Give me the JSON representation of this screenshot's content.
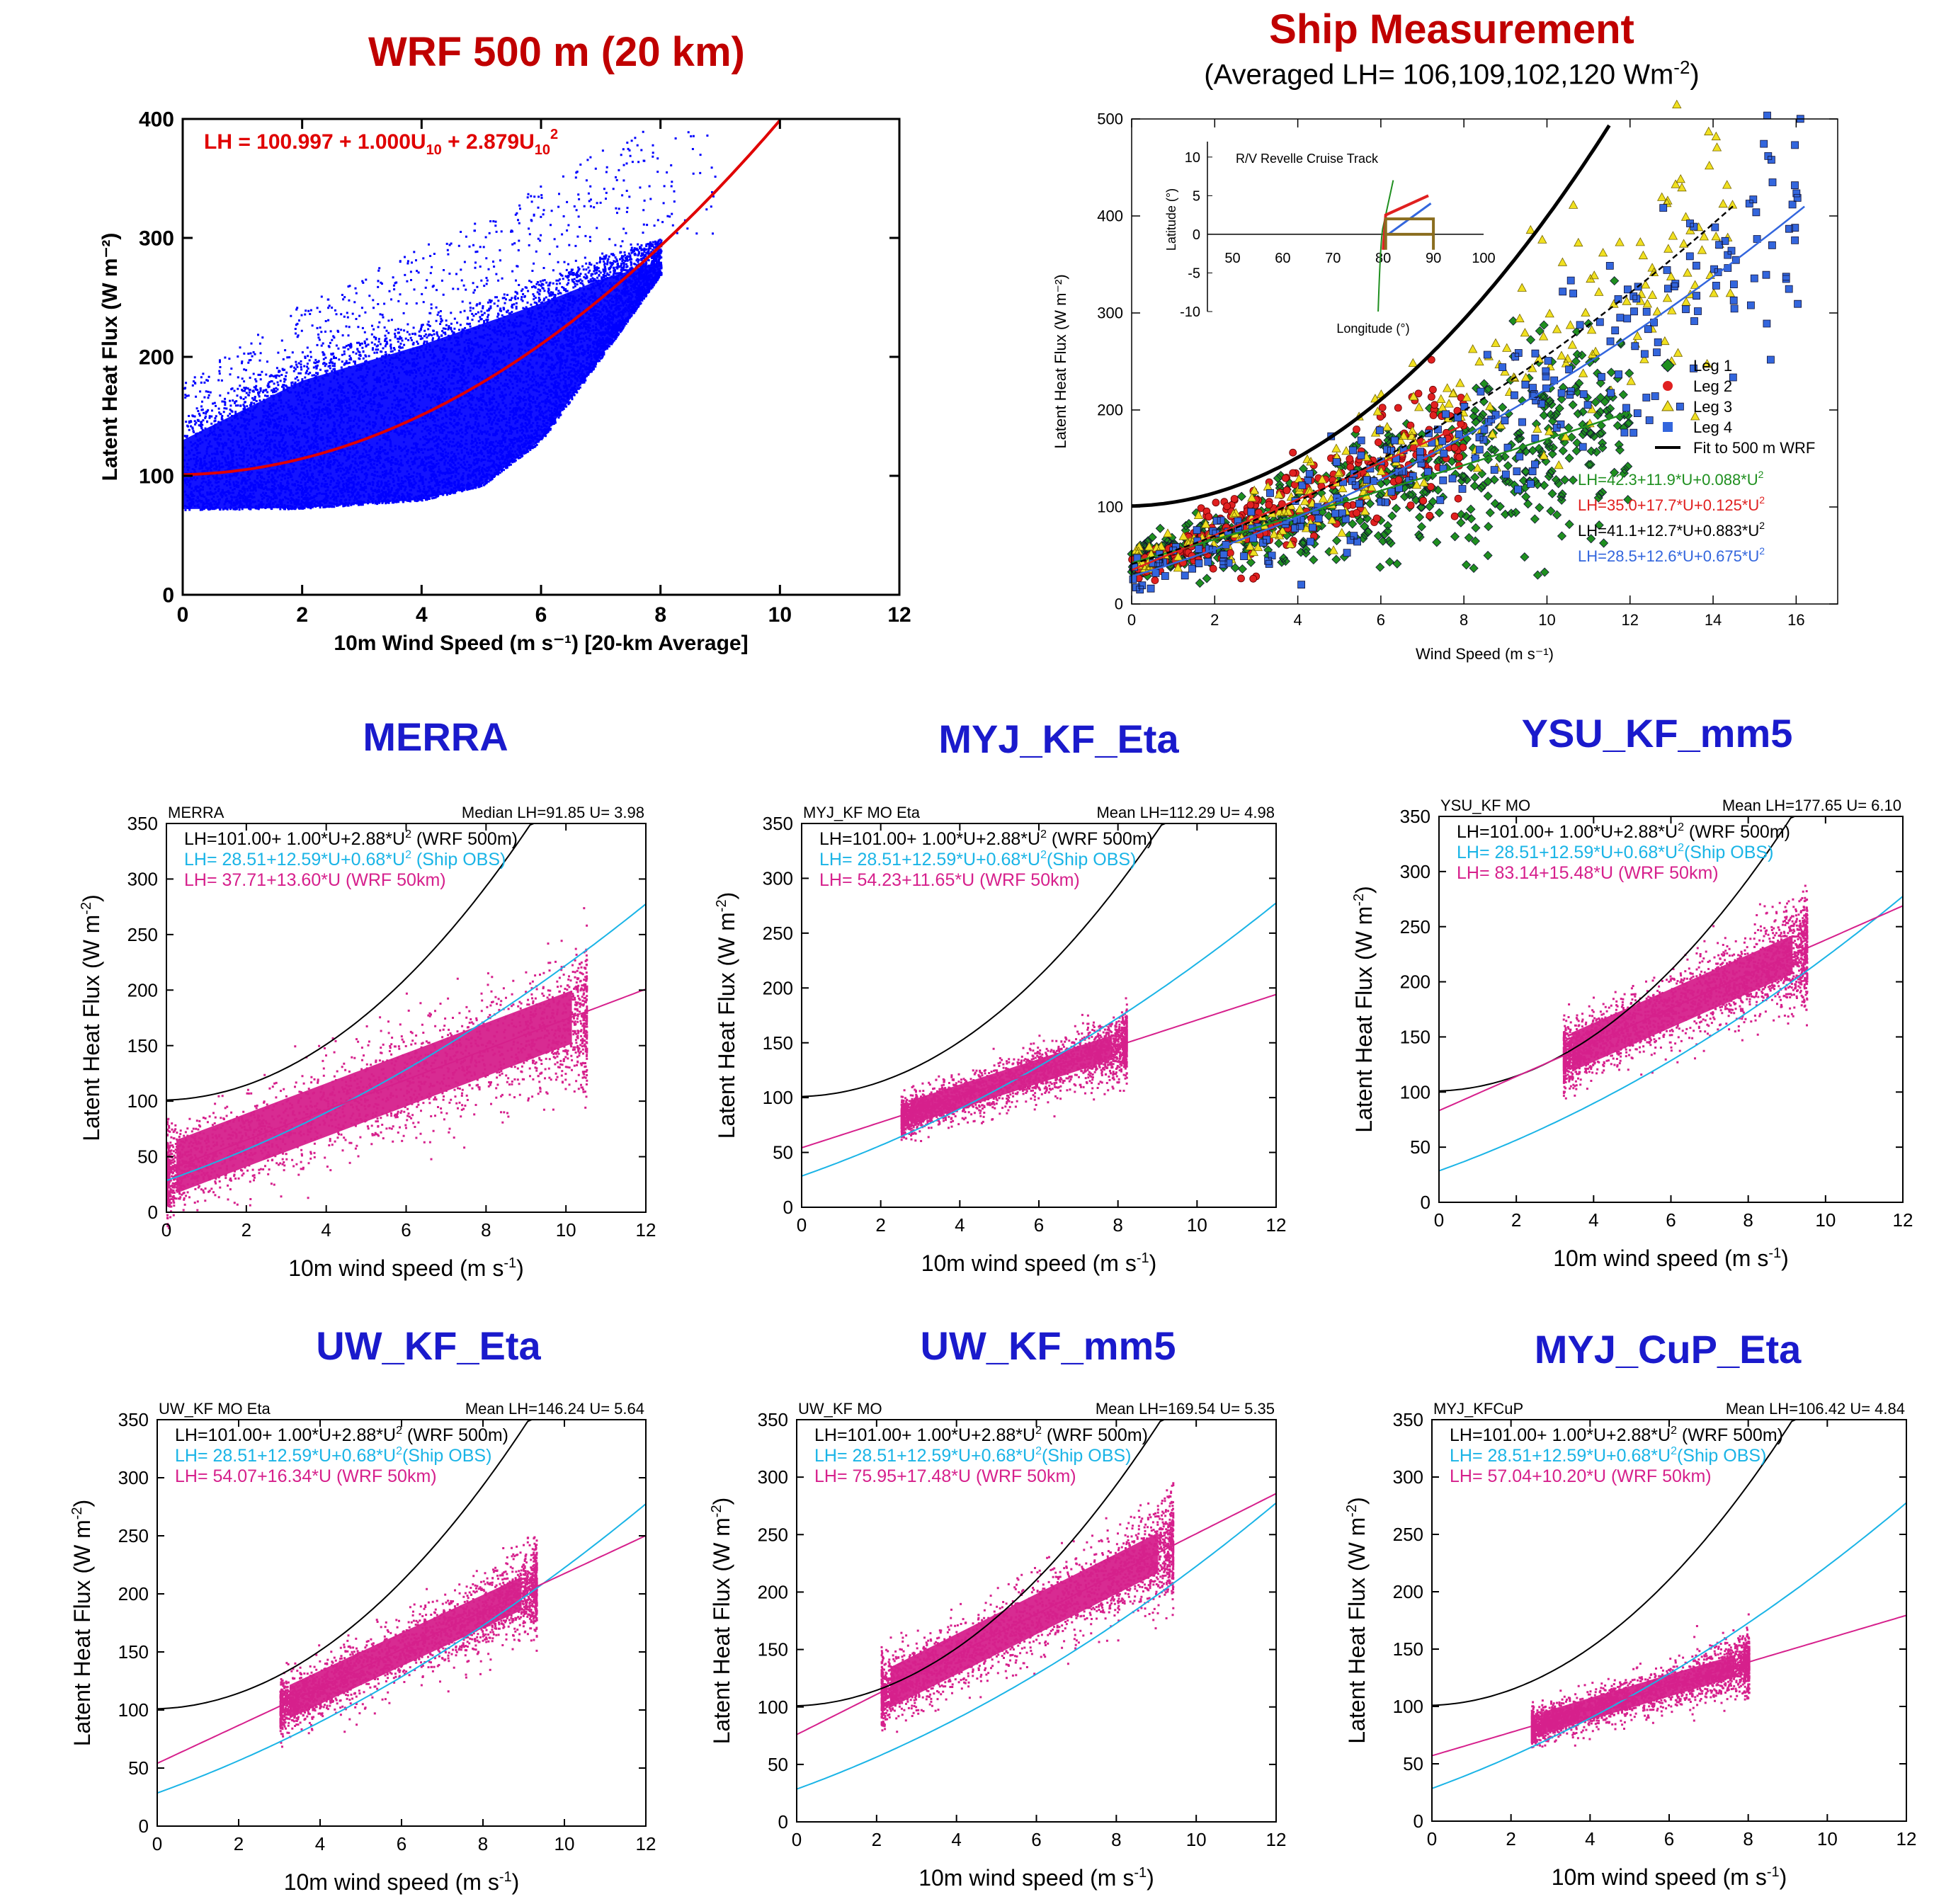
{
  "headers": {
    "wrf": "WRF 500 m (20 km)",
    "ship": "Ship Measurement",
    "ship_sub": "(Averaged LH= 106,109,102,120 Wm",
    "ship_sub_exp": "-2",
    "ship_sub_end": ")"
  },
  "colors": {
    "header_red": "#c00000",
    "header_blue": "#1a1acc",
    "wrf_points": "#0000ff",
    "wrf_fit": "#e00000",
    "magenta": "#d6208c",
    "cyan": "#1ab4e6",
    "black": "#000000",
    "leg1": "#1f8f1f",
    "leg2": "#e02020",
    "leg3": "#f0e020",
    "leg4": "#3366dd"
  },
  "chart_data": [
    {
      "id": "wrf500",
      "type": "scatter",
      "title": "WRF 500 m (20 km)",
      "xlabel": "10m Wind Speed (m s⁻¹) [20-km Average]",
      "ylabel": "Latent Heat Flux (W m⁻²)",
      "xlim": [
        0,
        12
      ],
      "ylim": [
        0,
        400
      ],
      "xticks": [
        0,
        2,
        4,
        6,
        8,
        10,
        12
      ],
      "yticks": [
        0,
        100,
        200,
        300,
        400
      ],
      "equation": "LH =  100.997 +    1.000U",
      "equation_parts": [
        "LH =  100.997 +",
        "1.000U",
        "10",
        "+",
        "2.879U",
        "10",
        "2"
      ],
      "fit": {
        "a": 100.997,
        "b": 1.0,
        "c": 2.879,
        "xmax": 10
      },
      "point_cloud": {
        "x_range": [
          0,
          8.9
        ],
        "lower_envelope": [
          [
            0,
            72
          ],
          [
            2,
            73
          ],
          [
            4,
            80
          ],
          [
            5,
            92
          ],
          [
            6,
            130
          ],
          [
            7,
            200
          ],
          [
            8,
            270
          ]
        ],
        "upper_envelope": [
          [
            0,
            150
          ],
          [
            1,
            175
          ],
          [
            2,
            200
          ],
          [
            4,
            230
          ],
          [
            6,
            265
          ],
          [
            7,
            285
          ],
          [
            8,
            300
          ]
        ]
      }
    },
    {
      "id": "ship",
      "type": "scatter",
      "title": "Ship Measurement",
      "xlabel": "Wind Speed (m s⁻¹)",
      "ylabel": "Latent Heat Flux (W m⁻²)",
      "xlim": [
        0,
        17
      ],
      "ylim": [
        0,
        500
      ],
      "xticks": [
        0,
        2,
        4,
        6,
        8,
        10,
        12,
        14,
        16
      ],
      "yticks": [
        0,
        100,
        200,
        300,
        400,
        500
      ],
      "legend": [
        "Leg 1",
        "Leg 2",
        "Leg 3",
        "Leg 4",
        "Fit to 500 m WRF"
      ],
      "series": [
        {
          "name": "Leg 1",
          "fit": "LH=42.3+11.9*U+0.088*U",
          "a": 42.3,
          "b": 11.9,
          "c": 0.088,
          "x_range": [
            0,
            12
          ]
        },
        {
          "name": "Leg 2",
          "fit": "LH=35.0+17.7*U+0.125*U",
          "a": 35.0,
          "b": 17.7,
          "c": 0.125,
          "x_range": [
            0,
            8
          ]
        },
        {
          "name": "Leg 3",
          "fit": "LH=41.1+12.7*U+0.883*U",
          "a": 41.1,
          "b": 12.7,
          "c": 0.883,
          "x_range": [
            0,
            14.5
          ]
        },
        {
          "name": "Leg 4",
          "fit": "LH=28.5+12.6*U+0.675*U",
          "a": 28.5,
          "b": 12.6,
          "c": 0.675,
          "x_range": [
            0,
            16.2
          ]
        }
      ],
      "wrf_fit": {
        "a": 101.0,
        "b": 1.0,
        "c": 2.88,
        "x_range": [
          0,
          11.5
        ]
      },
      "inset": {
        "title": "R/V Revelle Cruise Track",
        "xlabel": "Longitude (°)",
        "ylabel": "Latitude (°)",
        "xticks": [
          50,
          60,
          70,
          80,
          90,
          100
        ],
        "yticks": [
          -10,
          -5,
          0,
          5,
          10
        ]
      }
    },
    {
      "id": "merra",
      "type": "scatter",
      "heading": "MERRA",
      "left_label": "MERRA",
      "right_label": "Median LH=91.85 U= 3.98",
      "xlabel": "10m wind speed (m s",
      "xlabel_exp": "-1",
      "xlabel_end": ")",
      "ylabel": "Latent Heat Flux (W m",
      "ylabel_exp": "-2",
      "ylabel_end": ")",
      "xlim": [
        0,
        12
      ],
      "ylim": [
        0,
        350
      ],
      "xticks": [
        0,
        2,
        4,
        6,
        8,
        10,
        12
      ],
      "yticks": [
        0,
        50,
        100,
        150,
        200,
        250,
        300,
        350
      ],
      "eq_black": "LH=101.00+ 1.00*U+2.88*U",
      "eq_black_end": " (WRF 500m)",
      "eq_cyan": "LH= 28.51+12.59*U+0.68*U",
      "eq_cyan_end": " (Ship OBS)",
      "eq_magenta": "LH= 37.71+13.60*U (WRF 50km)",
      "magenta_fit": {
        "a": 37.71,
        "b": 13.6
      },
      "cloud": {
        "xmin": 0,
        "xmax": 10.5,
        "spread": 30
      }
    },
    {
      "id": "myj_kf_eta",
      "type": "scatter",
      "heading": "MYJ_KF_Eta",
      "left_label": "MYJ_KF MO Eta",
      "right_label": "Mean LH=112.29 U= 4.98",
      "xlabel": "10m wind speed (m s",
      "xlabel_exp": "-1",
      "xlabel_end": ")",
      "ylabel": "Latent Heat Flux (W m",
      "ylabel_exp": "-2",
      "ylabel_end": ")",
      "xlim": [
        0,
        12
      ],
      "ylim": [
        0,
        350
      ],
      "xticks": [
        0,
        2,
        4,
        6,
        8,
        10,
        12
      ],
      "yticks": [
        0,
        50,
        100,
        150,
        200,
        250,
        300,
        350
      ],
      "eq_black": "LH=101.00+ 1.00*U+2.88*U",
      "eq_black_end": " (WRF 500m)",
      "eq_cyan": "LH= 28.51+12.59*U+0.68*U",
      "eq_cyan_end": "(Ship OBS)",
      "eq_magenta": "LH= 54.23+11.65*U (WRF 50km)",
      "magenta_fit": {
        "a": 54.23,
        "b": 11.65
      },
      "cloud": {
        "xmin": 2.5,
        "xmax": 8.2,
        "spread": 14
      }
    },
    {
      "id": "ysu_kf_mm5",
      "type": "scatter",
      "heading": "YSU_KF_mm5",
      "left_label": "YSU_KF MO",
      "right_label": "Mean LH=177.65 U= 6.10",
      "xlabel": "10m wind speed (m s",
      "xlabel_exp": "-1",
      "xlabel_end": ")",
      "ylabel": "Latent Heat Flux (W m",
      "ylabel_exp": "-2",
      "ylabel_end": ")",
      "xlim": [
        0,
        12
      ],
      "ylim": [
        0,
        350
      ],
      "xticks": [
        0,
        2,
        4,
        6,
        8,
        10,
        12
      ],
      "yticks": [
        0,
        50,
        100,
        150,
        200,
        250,
        300,
        350
      ],
      "eq_black": "LH=101.00+ 1.00*U+2.88*U",
      "eq_black_end": " (WRF 500m)",
      "eq_cyan": "LH= 28.51+12.59*U+0.68*U",
      "eq_cyan_end": "(Ship OBS)",
      "eq_magenta": "LH= 83.14+15.48*U (WRF 50km)",
      "magenta_fit": {
        "a": 83.14,
        "b": 15.48
      },
      "cloud": {
        "xmin": 3.2,
        "xmax": 9.5,
        "spread": 22
      }
    },
    {
      "id": "uw_kf_eta",
      "type": "scatter",
      "heading": "UW_KF_Eta",
      "left_label": "UW_KF MO Eta",
      "right_label": "Mean LH=146.24 U= 5.64",
      "xlabel": "10m wind speed (m s",
      "xlabel_exp": "-1",
      "xlabel_end": ")",
      "ylabel": "Latent Heat Flux (W m",
      "ylabel_exp": "-2",
      "ylabel_end": ")",
      "xlim": [
        0,
        12
      ],
      "ylim": [
        0,
        350
      ],
      "xticks": [
        0,
        2,
        4,
        6,
        8,
        10,
        12
      ],
      "yticks": [
        0,
        50,
        100,
        150,
        200,
        250,
        300,
        350
      ],
      "eq_black": "LH=101.00+ 1.00*U+2.88*U",
      "eq_black_end": " (WRF 500m)",
      "eq_cyan": "LH= 28.51+12.59*U+0.68*U",
      "eq_cyan_end": "(Ship OBS)",
      "eq_magenta": "LH= 54.07+16.34*U (WRF 50km)",
      "magenta_fit": {
        "a": 54.07,
        "b": 16.34
      },
      "cloud": {
        "xmin": 3.0,
        "xmax": 9.3,
        "spread": 18
      }
    },
    {
      "id": "uw_kf_mm5",
      "type": "scatter",
      "heading": "UW_KF_mm5",
      "left_label": "UW_KF MO",
      "right_label": "Mean LH=169.54 U= 5.35",
      "xlabel": "10m wind speed (m s",
      "xlabel_exp": "-1",
      "xlabel_end": ")",
      "ylabel": "Latent Heat Flux (W m",
      "ylabel_exp": "-2",
      "ylabel_end": ")",
      "xlim": [
        0,
        12
      ],
      "ylim": [
        0,
        350
      ],
      "xticks": [
        0,
        2,
        4,
        6,
        8,
        10,
        12
      ],
      "yticks": [
        0,
        50,
        100,
        150,
        200,
        250,
        300,
        350
      ],
      "eq_black": "LH=101.00+ 1.00*U+2.88*U",
      "eq_black_end": " (WRF 500m)",
      "eq_cyan": "LH= 28.51+12.59*U+0.68*U",
      "eq_cyan_end": "(Ship OBS)",
      "eq_magenta": "LH= 75.95+17.48*U (WRF 50km)",
      "magenta_fit": {
        "a": 75.95,
        "b": 17.48
      },
      "cloud": {
        "xmin": 2.1,
        "xmax": 9.4,
        "spread": 22
      }
    },
    {
      "id": "myj_cup_eta",
      "type": "scatter",
      "heading": "MYJ_CuP_Eta",
      "left_label": "MYJ_KFCuP",
      "right_label": "Mean LH=106.42 U= 4.84",
      "xlabel": "10m wind speed (m s",
      "xlabel_exp": "-1",
      "xlabel_end": ")",
      "ylabel": "Latent Heat Flux (W m",
      "ylabel_exp": "-2",
      "ylabel_end": ")",
      "xlim": [
        0,
        12
      ],
      "ylim": [
        0,
        350
      ],
      "xticks": [
        0,
        2,
        4,
        6,
        8,
        10,
        12
      ],
      "yticks": [
        0,
        50,
        100,
        150,
        200,
        250,
        300,
        350
      ],
      "eq_black": "LH=101.00+ 1.00*U+2.88*U",
      "eq_black_end": " (WRF 500m)",
      "eq_cyan": "LH= 28.51+12.59*U+0.68*U",
      "eq_cyan_end": "(Ship OBS)",
      "eq_magenta": "LH= 57.04+10.20*U (WRF 50km)",
      "magenta_fit": {
        "a": 57.04,
        "b": 10.2
      },
      "cloud": {
        "xmin": 2.5,
        "xmax": 8.0,
        "spread": 12
      }
    }
  ]
}
